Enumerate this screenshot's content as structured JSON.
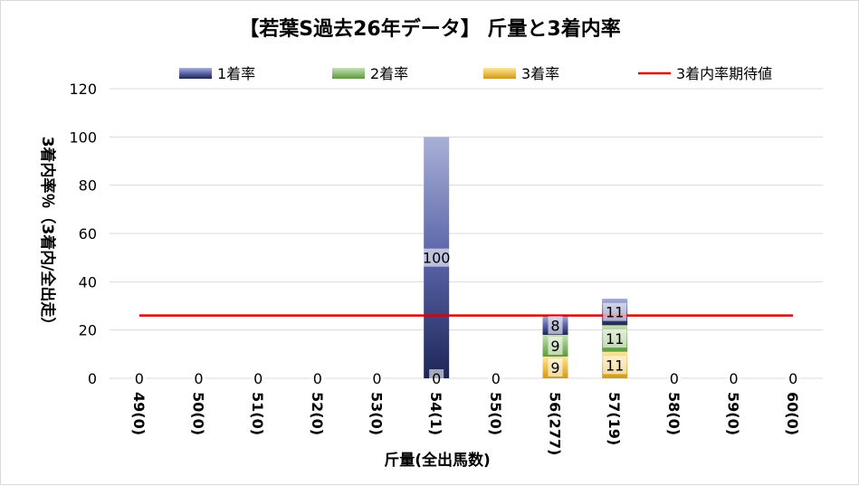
{
  "chart_data": {
    "type": "bar",
    "title": "【若葉S過去26年データ】 斤量と3着内率",
    "xlabel": "斤量(全出馬数)",
    "ylabel": "3着内率％（3着内/全出走）",
    "categories": [
      "49(0)",
      "50(0)",
      "51(0)",
      "52(0)",
      "53(0)",
      "54(1)",
      "55(0)",
      "56(277)",
      "57(19)",
      "58(0)",
      "59(0)",
      "60(0)"
    ],
    "ylim": [
      0,
      120
    ],
    "yticks": [
      "0",
      "20",
      "40",
      "60",
      "80",
      "100",
      "120"
    ],
    "series": [
      {
        "name": "1着率",
        "values": [
          0,
          0,
          0,
          0,
          0,
          100,
          0,
          8,
          11,
          0,
          0,
          0
        ],
        "color": "#2f3a7a"
      },
      {
        "name": "2着率",
        "values": [
          0,
          0,
          0,
          0,
          0,
          0,
          0,
          9,
          11,
          0,
          0,
          0
        ],
        "color": "#5e9a3c"
      },
      {
        "name": "3着率",
        "values": [
          0,
          0,
          0,
          0,
          0,
          0,
          0,
          9,
          11,
          0,
          0,
          0
        ],
        "color": "#e0a21e"
      }
    ],
    "data_labels": {
      "bottom": [
        "0",
        "0",
        "0",
        "0",
        "0",
        "0",
        "0",
        "9",
        "11",
        "0",
        "0",
        "0"
      ],
      "middle": [
        "",
        "",
        "",
        "",
        "",
        "",
        "",
        "9",
        "11",
        "",
        "",
        ""
      ],
      "top": [
        "",
        "",
        "",
        "",
        "",
        "100",
        "",
        "8",
        "11",
        "",
        "",
        ""
      ]
    },
    "reference_line": {
      "name": "3着内率期待値",
      "value": 26,
      "color": "#e00000"
    },
    "grid": true,
    "legend_position": "top"
  }
}
